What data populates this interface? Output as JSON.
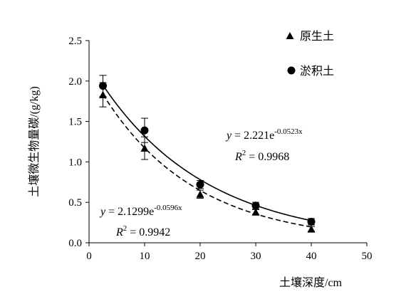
{
  "chart_data": {
    "type": "scatter",
    "xlabel": "土壤深度/cm",
    "ylabel": "土壤微生物量碳/(g/kg)",
    "xlim": [
      0,
      50
    ],
    "ylim": [
      0,
      2.5
    ],
    "xticks": [
      "0",
      "10",
      "20",
      "30",
      "40",
      "50"
    ],
    "yticks": [
      "0.0",
      "0.5",
      "1.0",
      "1.5",
      "2.0",
      "2.5"
    ],
    "grid": false,
    "legend_position": "top-right",
    "series": [
      {
        "name": "原生土",
        "marker": "triangle",
        "x": [
          2.5,
          10,
          20,
          30,
          40
        ],
        "y": [
          1.83,
          1.17,
          0.6,
          0.38,
          0.17
        ],
        "error": [
          0.15,
          0.14,
          0.05,
          0.03,
          0.03
        ],
        "fit": {
          "equation_lead": "y",
          "equation_main": " = 2.1299e",
          "equation_exp": "-0.0596x",
          "r2_lead": "R",
          "r2_sup": "2",
          "r2_value": " = 0.9942",
          "a": 2.1299,
          "b": -0.0596,
          "line_style": "dashed"
        }
      },
      {
        "name": "淤积土",
        "marker": "circle",
        "x": [
          2.5,
          10,
          20,
          30,
          40
        ],
        "y": [
          1.94,
          1.39,
          0.72,
          0.46,
          0.26
        ],
        "error": [
          0.13,
          0.15,
          0.05,
          0.04,
          0.04
        ],
        "fit": {
          "equation_lead": "y",
          "equation_main": " = 2.221e",
          "equation_exp": "-0.0523x",
          "r2_lead": "R",
          "r2_sup": "2",
          "r2_value": " = 0.9968",
          "a": 2.221,
          "b": -0.0523,
          "line_style": "solid"
        }
      }
    ]
  }
}
